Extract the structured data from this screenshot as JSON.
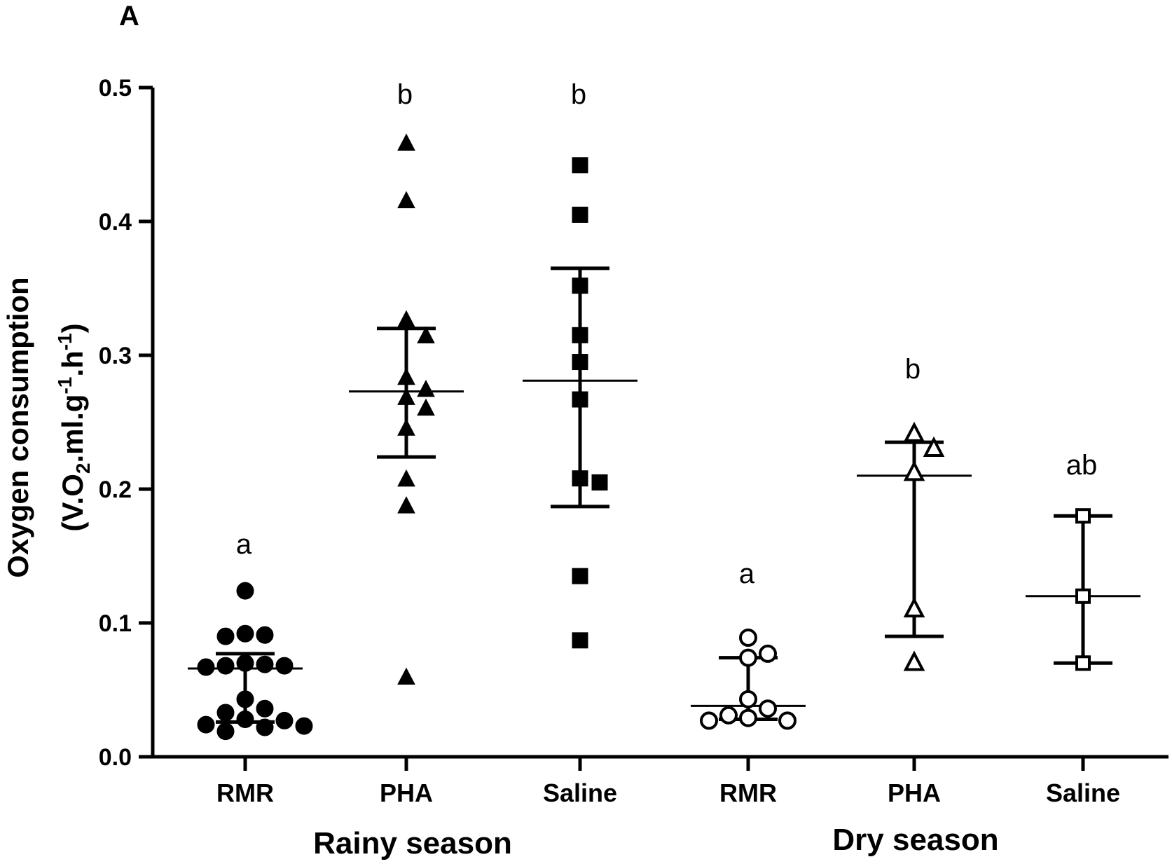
{
  "chart_data": {
    "type": "scatter",
    "panel_label": "A",
    "ylabel_line1": "Oxygen consumption",
    "ylabel_line2_parts": [
      "(V.O",
      "2",
      ".ml.g",
      "-1",
      ".h",
      "-1",
      ")"
    ],
    "ylim": [
      0,
      0.5
    ],
    "yticks": [
      0.0,
      0.1,
      0.2,
      0.3,
      0.4,
      0.5
    ],
    "ytick_labels": [
      "0.0",
      "0.1",
      "0.2",
      "0.3",
      "0.4",
      "0.5"
    ],
    "groups": [
      {
        "label": "Rainy season",
        "categories": [
          "RMR",
          "PHA",
          "Saline"
        ]
      },
      {
        "label": "Dry season",
        "categories": [
          "RMR",
          "PHA",
          "Saline"
        ]
      }
    ],
    "series": [
      {
        "category": "RMR",
        "group": "Rainy season",
        "marker": "circle",
        "filled": true,
        "sig": "a",
        "center": 0.066,
        "q1": 0.026,
        "q3": 0.077,
        "points": [
          0.124,
          0.092,
          0.091,
          0.09,
          0.07,
          0.069,
          0.068,
          0.068,
          0.067,
          0.043,
          0.036,
          0.033,
          0.028,
          0.027,
          0.024,
          0.023,
          0.022,
          0.019
        ]
      },
      {
        "category": "PHA",
        "group": "Rainy season",
        "marker": "triangle",
        "filled": true,
        "sig": "b",
        "center": 0.273,
        "q1": 0.224,
        "q3": 0.32,
        "points": [
          0.458,
          0.415,
          0.326,
          0.314,
          0.283,
          0.274,
          0.268,
          0.26,
          0.245,
          0.207,
          0.187,
          0.059
        ]
      },
      {
        "category": "Saline",
        "group": "Rainy season",
        "marker": "square",
        "filled": true,
        "sig": "b",
        "center": 0.281,
        "q1": 0.187,
        "q3": 0.365,
        "points": [
          0.442,
          0.405,
          0.352,
          0.315,
          0.295,
          0.267,
          0.208,
          0.205,
          0.135,
          0.087
        ]
      },
      {
        "category": "RMR",
        "group": "Dry season",
        "marker": "circle",
        "filled": false,
        "sig": "a",
        "center": 0.038,
        "q1": 0.028,
        "q3": 0.074,
        "points": [
          0.089,
          0.077,
          0.074,
          0.043,
          0.036,
          0.031,
          0.029,
          0.027,
          0.027
        ]
      },
      {
        "category": "PHA",
        "group": "Dry season",
        "marker": "triangle",
        "filled": false,
        "sig": "b",
        "center": 0.21,
        "q1": 0.09,
        "q3": 0.235,
        "points": [
          0.241,
          0.23,
          0.212,
          0.11,
          0.07
        ]
      },
      {
        "category": "Saline",
        "group": "Dry season",
        "marker": "square",
        "filled": false,
        "sig": "ab",
        "center": 0.12,
        "q1": 0.07,
        "q3": 0.18,
        "points": [
          0.18,
          0.12,
          0.07
        ]
      }
    ]
  }
}
